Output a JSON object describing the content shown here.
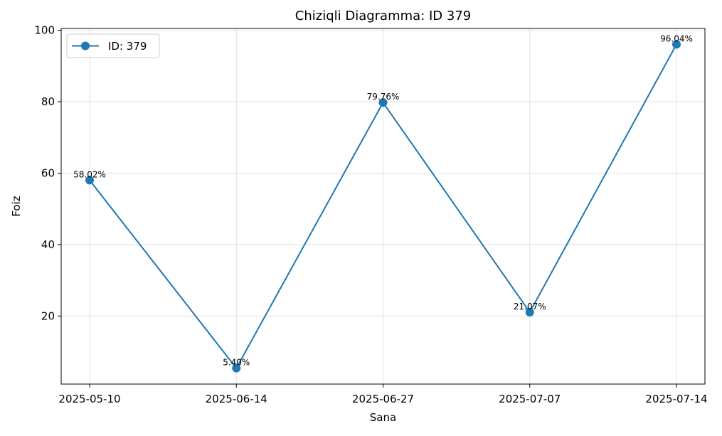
{
  "chart_data": {
    "type": "line",
    "title": "Chiziqli Diagramma: ID 379",
    "xlabel": "Sana",
    "ylabel": "Foiz",
    "categories": [
      "2025-05-10",
      "2025-06-14",
      "2025-06-27",
      "2025-07-07",
      "2025-07-14"
    ],
    "series": [
      {
        "name": "ID: 379",
        "values": [
          58.02,
          5.4,
          79.76,
          21.07,
          96.04
        ],
        "labels": [
          "58.02%",
          "5.40%",
          "79.76%",
          "21.07%",
          "96.04%"
        ],
        "color": "#1f77b4"
      }
    ],
    "ylim": [
      0.95,
      100.5
    ],
    "yticks": [
      20,
      40,
      60,
      80,
      100
    ],
    "grid": true,
    "legend": "top-left"
  }
}
